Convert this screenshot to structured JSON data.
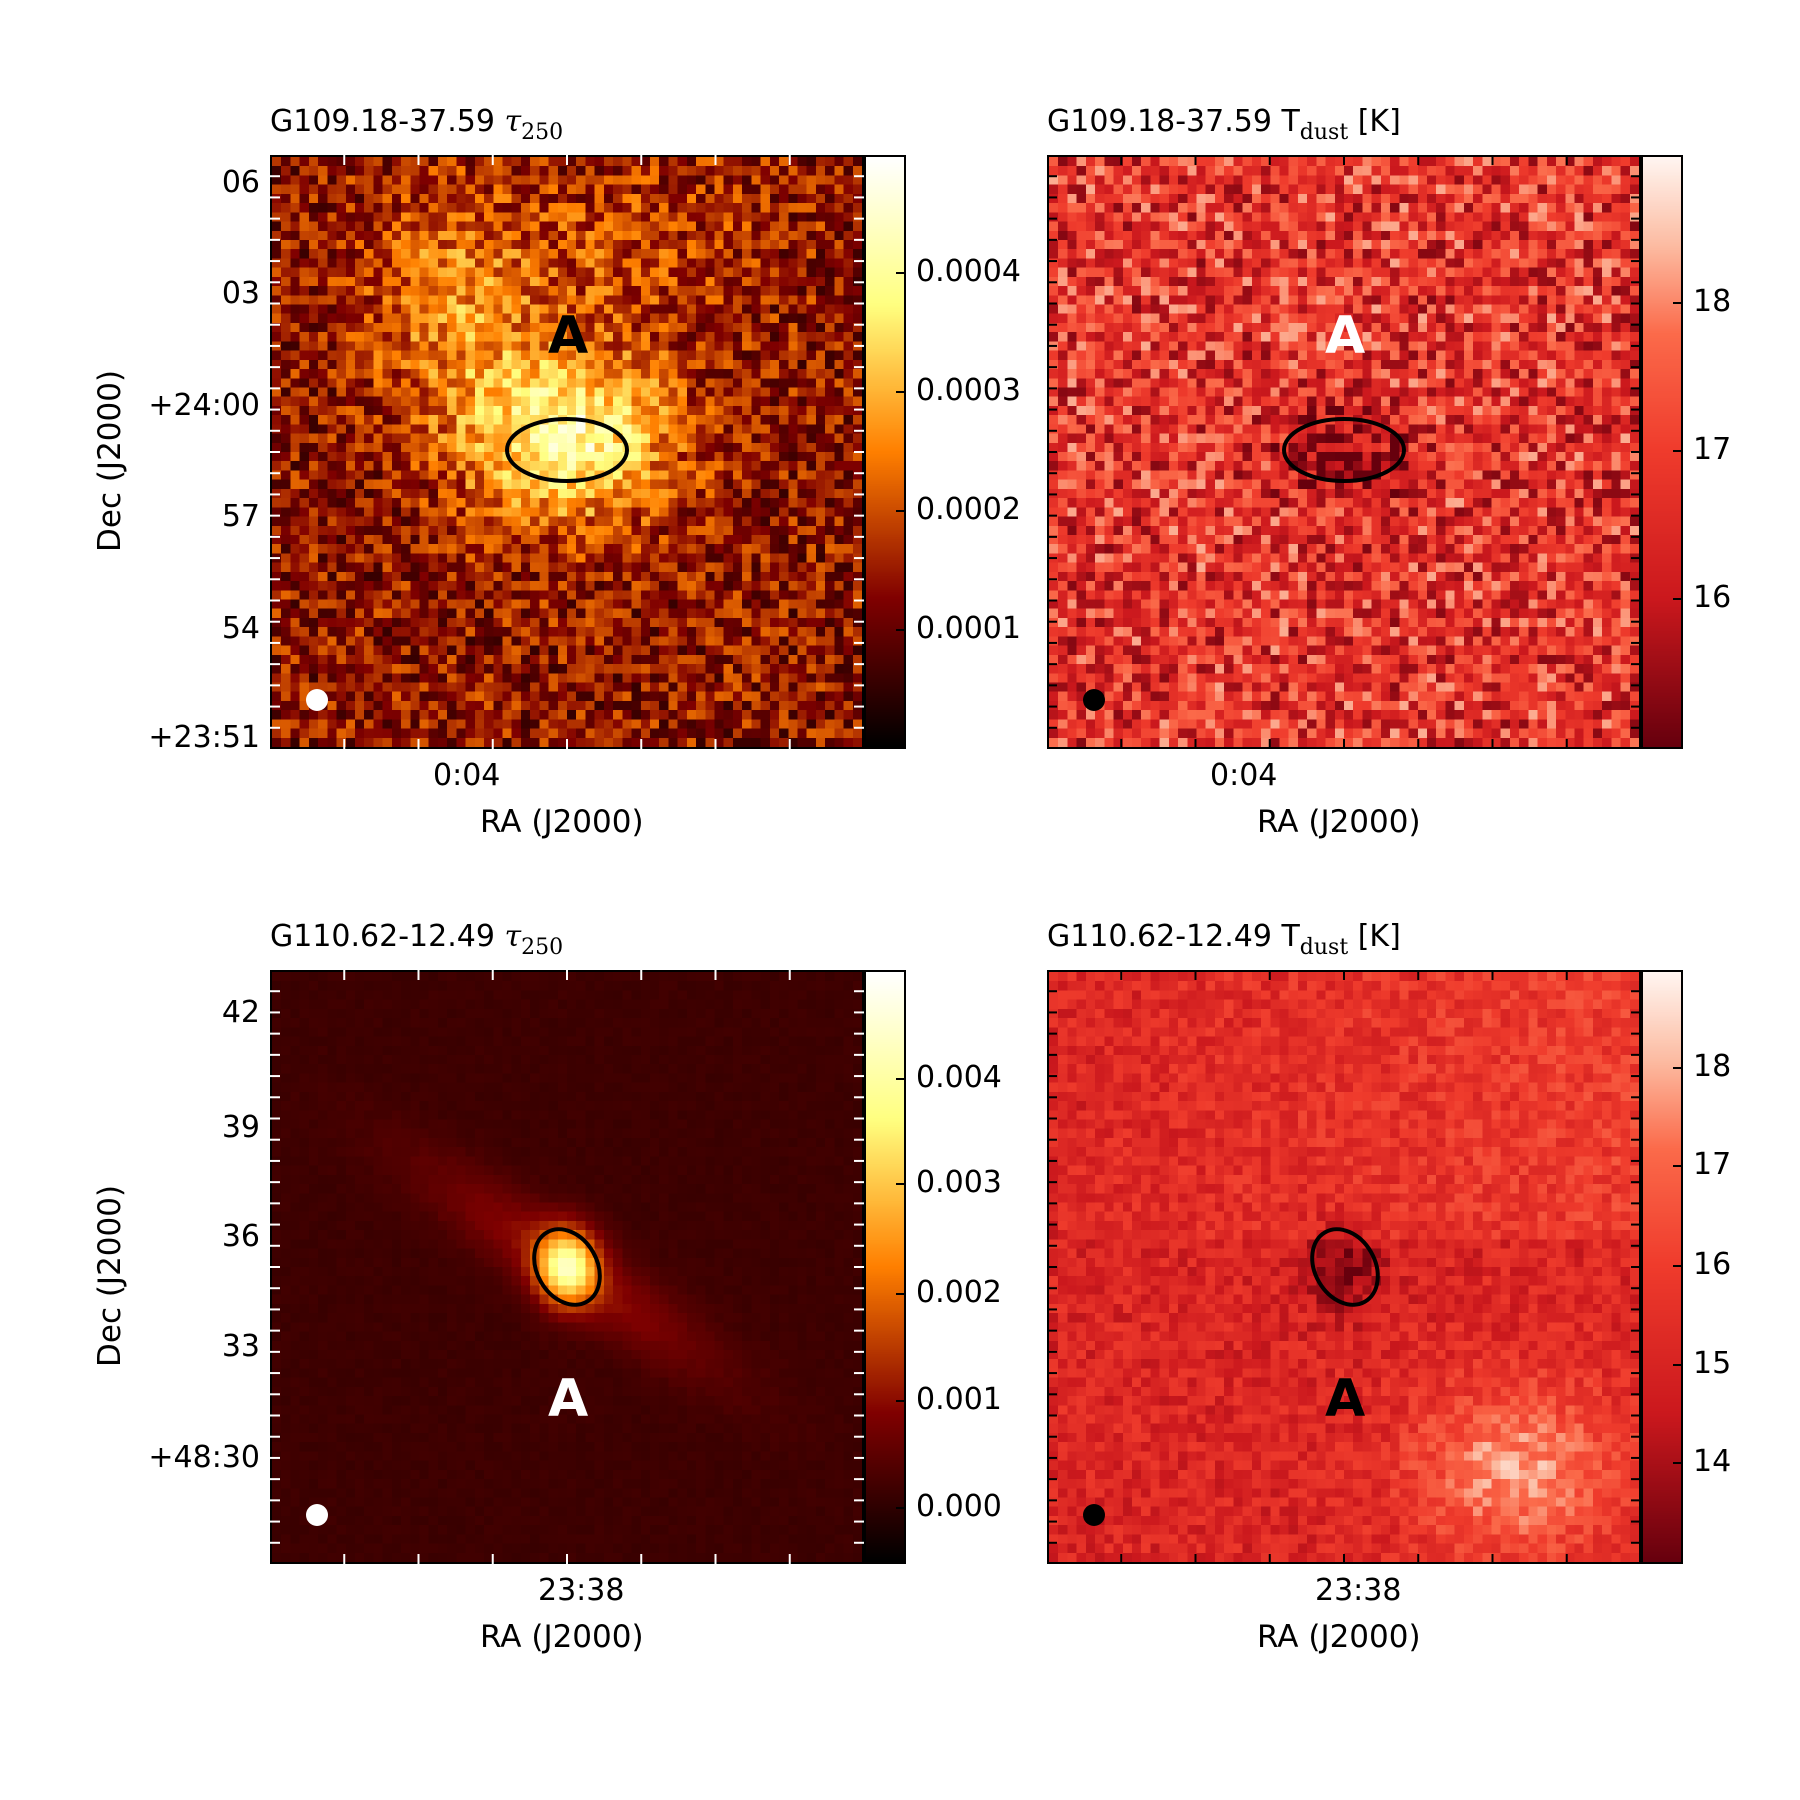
{
  "panels": [
    {
      "id": "p1",
      "title_main": "G109.18-37.59",
      "title_symbol": "τ",
      "title_sub": "250",
      "title_unit": "",
      "colormap": "afmhot",
      "yticks": [
        "06",
        "03",
        "+24:00",
        "57",
        "54",
        "+23:51"
      ],
      "xtick": "0:04",
      "xlabel": "RA (J2000)",
      "ylabel": "Dec (J2000)",
      "cbar_ticks": [
        "0.0004",
        "0.0003",
        "0.0002",
        "0.0001"
      ],
      "region_label": "A",
      "region_label_color": "#000000",
      "beam_color": "#ffffff",
      "ellipse_color": "#000000"
    },
    {
      "id": "p2",
      "title_main": "G109.18-37.59 T",
      "title_symbol": "",
      "title_sub": "dust",
      "title_unit": "[K]",
      "colormap": "Reds_r",
      "yticks": [],
      "xtick": "0:04",
      "xlabel": "RA (J2000)",
      "ylabel": "",
      "cbar_ticks": [
        "18",
        "17",
        "16"
      ],
      "region_label": "A",
      "region_label_color": "#ffffff",
      "beam_color": "#000000",
      "ellipse_color": "#000000"
    },
    {
      "id": "p3",
      "title_main": "G110.62-12.49",
      "title_symbol": "τ",
      "title_sub": "250",
      "title_unit": "",
      "colormap": "afmhot",
      "yticks": [
        "42",
        "39",
        "36",
        "33",
        "+48:30"
      ],
      "xtick": "23:38",
      "xlabel": "RA (J2000)",
      "ylabel": "Dec (J2000)",
      "cbar_ticks": [
        "0.004",
        "0.003",
        "0.002",
        "0.001",
        "0.000"
      ],
      "region_label": "A",
      "region_label_color": "#ffffff",
      "beam_color": "#ffffff",
      "ellipse_color": "#000000"
    },
    {
      "id": "p4",
      "title_main": "G110.62-12.49 T",
      "title_symbol": "",
      "title_sub": "dust",
      "title_unit": "[K]",
      "colormap": "Reds_r",
      "yticks": [],
      "xtick": "23:38",
      "xlabel": "RA (J2000)",
      "ylabel": "",
      "cbar_ticks": [
        "18",
        "17",
        "16",
        "15",
        "14"
      ],
      "region_label": "A",
      "region_label_color": "#000000",
      "beam_color": "#000000",
      "ellipse_color": "#000000"
    }
  ],
  "chart_data": [
    {
      "type": "heatmap",
      "title": "G109.18-37.59 τ250",
      "xlabel": "RA (J2000)",
      "ylabel": "Dec (J2000)",
      "x_ticks": [
        "0:04"
      ],
      "y_ticks": [
        "06",
        "03",
        "+24:00",
        "57",
        "54",
        "+23:51"
      ],
      "colorbar_ticks": [
        0.0004,
        0.0003,
        0.0002,
        0.0001
      ],
      "colorbar_range": [
        0.0,
        0.0005
      ],
      "colormap": "afmhot",
      "annotations": [
        "A"
      ]
    },
    {
      "type": "heatmap",
      "title": "G109.18-37.59 Tdust [K]",
      "xlabel": "RA (J2000)",
      "x_ticks": [
        "0:04"
      ],
      "colorbar_ticks": [
        18,
        17,
        16
      ],
      "colorbar_range": [
        15.0,
        19.0
      ],
      "colormap": "Reds_r",
      "annotations": [
        "A"
      ]
    },
    {
      "type": "heatmap",
      "title": "G110.62-12.49 τ250",
      "xlabel": "RA (J2000)",
      "ylabel": "Dec (J2000)",
      "x_ticks": [
        "23:38"
      ],
      "y_ticks": [
        "42",
        "39",
        "36",
        "33",
        "+48:30"
      ],
      "colorbar_ticks": [
        0.004,
        0.003,
        0.002,
        0.001,
        0.0
      ],
      "colorbar_range": [
        -0.0005,
        0.005
      ],
      "colormap": "afmhot",
      "annotations": [
        "A"
      ]
    },
    {
      "type": "heatmap",
      "title": "G110.62-12.49 Tdust [K]",
      "xlabel": "RA (J2000)",
      "x_ticks": [
        "23:38"
      ],
      "colorbar_ticks": [
        18,
        17,
        16,
        15,
        14
      ],
      "colorbar_range": [
        13.0,
        18.9
      ],
      "colormap": "Reds_r",
      "annotations": [
        "A"
      ]
    }
  ]
}
